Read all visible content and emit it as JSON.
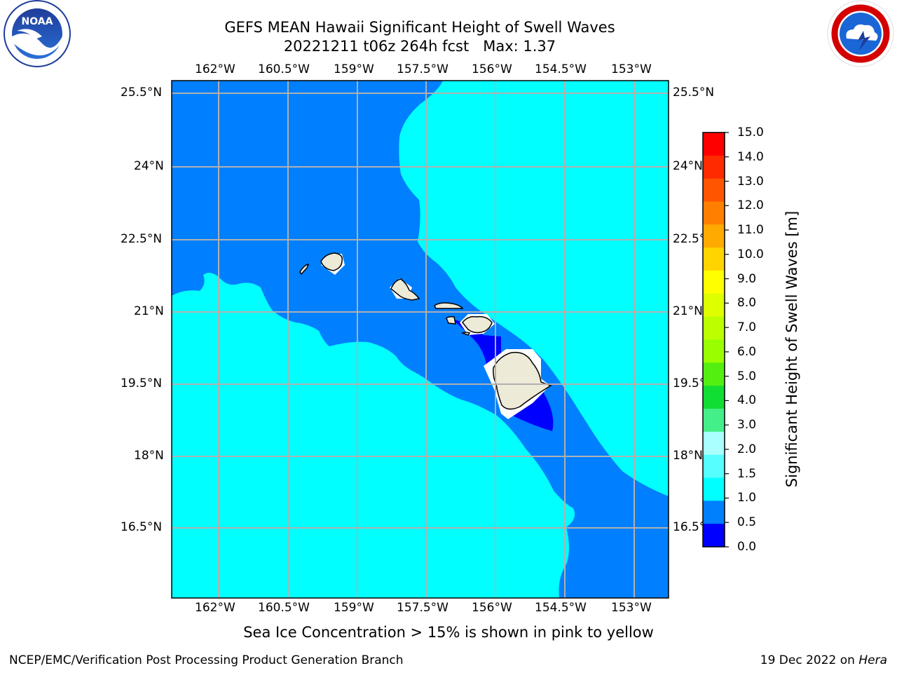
{
  "title": {
    "line1": "GEFS MEAN Hawaii Significant Height of Swell Waves",
    "line2": "20221211 t06z 264h fcst   Max: 1.37"
  },
  "lon_ticks": [
    "162°W",
    "160.5°W",
    "159°W",
    "157.5°W",
    "156°W",
    "154.5°W",
    "153°W"
  ],
  "lat_ticks": [
    "25.5°N",
    "24°N",
    "22.5°N",
    "21°N",
    "19.5°N",
    "18°N",
    "16.5°N"
  ],
  "colorbar": {
    "label": "Significant Height of Swell Waves [m]",
    "ticks": [
      "15.0",
      "14.0",
      "13.0",
      "12.0",
      "11.0",
      "10.0",
      "9.0",
      "8.0",
      "7.0",
      "6.0",
      "5.0",
      "4.0",
      "3.0",
      "2.0",
      "1.5",
      "1.0",
      "0.5",
      "0.0"
    ],
    "colors": [
      "#ff0000",
      "#ff2a00",
      "#ff5500",
      "#ff8000",
      "#ffaa00",
      "#ffd400",
      "#ffff00",
      "#ddff00",
      "#bbff00",
      "#99ff00",
      "#55ee11",
      "#11dd33",
      "#44ee88",
      "#aaffff",
      "#55ffff",
      "#00ffff",
      "#007fff",
      "#0000ff"
    ]
  },
  "map_colors": {
    "cyan": "#00ffff",
    "blue": "#007fff",
    "deep_blue": "#0000ff",
    "land": "#eeead8"
  },
  "caption": "Sea Ice Concentration > 15% is shown in pink to yellow",
  "footer": {
    "left": "NCEP/EMC/Verification Post Processing Product Generation Branch",
    "right_date": "19 Dec 2022 on ",
    "right_host": "Hera"
  },
  "logos": {
    "noaa": "NOAA",
    "nws": "NATIONAL WEATHER SERVICE"
  }
}
